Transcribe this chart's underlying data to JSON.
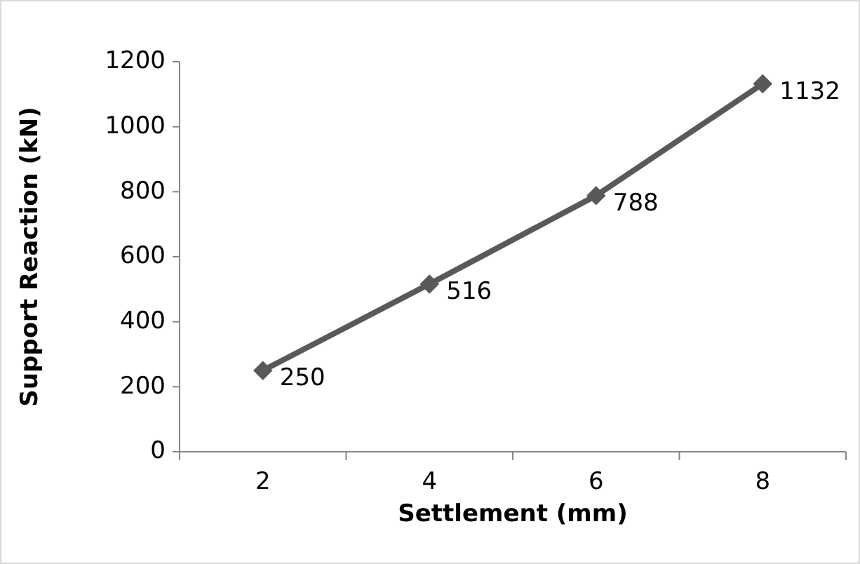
{
  "chart_data": {
    "type": "line",
    "xlabel": "Settlement (mm)",
    "ylabel": "Support Reaction (kN)",
    "categories": [
      "2",
      "4",
      "6",
      "8"
    ],
    "series": [
      {
        "color": "#595959",
        "values": [
          250,
          516,
          788,
          1132
        ]
      }
    ],
    "ylim": [
      0,
      1200
    ],
    "yticks": [
      0,
      200,
      400,
      600,
      800,
      1000,
      1200
    ],
    "grid": false,
    "marker": "diamond",
    "line_style": "solid",
    "data_labels": true
  }
}
